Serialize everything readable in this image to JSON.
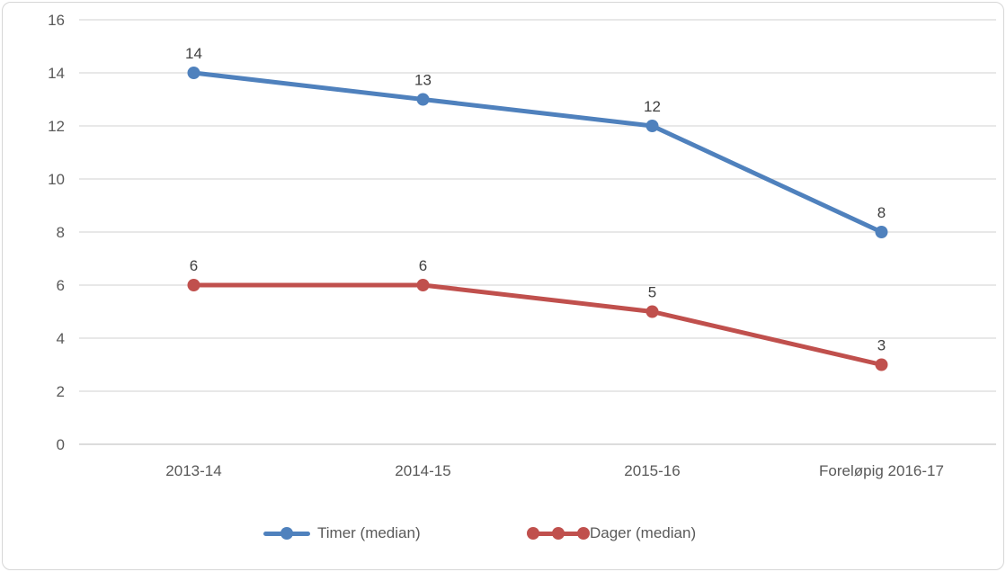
{
  "colors": {
    "blue_series": "#4F81BD",
    "red_series": "#C0504D",
    "gridline": "#D9D9D9",
    "axis_line": "#C6C6C6",
    "tick_text": "#595959",
    "data_label_text": "#404040",
    "frame_border": "#D6D6D6",
    "background": "#FFFFFF"
  },
  "legend": {
    "position": "bottom",
    "items": [
      {
        "label": "Timer (median)",
        "color": "#4F81BD",
        "marker": "line-one-dot"
      },
      {
        "label": "Dager (median)",
        "color": "#C0504D",
        "marker": "line-three-dots"
      }
    ]
  },
  "chart_data": {
    "type": "line",
    "title": "",
    "xlabel": "",
    "ylabel": "",
    "categories": [
      "2013-14",
      "2014-15",
      "2015-16",
      "Foreløpig 2016-17"
    ],
    "series": [
      {
        "name": "Timer (median)",
        "color": "#4F81BD",
        "values": [
          14,
          13,
          12,
          8
        ]
      },
      {
        "name": "Dager (median)",
        "color": "#C0504D",
        "values": [
          6,
          6,
          5,
          3
        ]
      }
    ],
    "ylim": [
      0,
      16
    ],
    "yticks": [
      0,
      2,
      4,
      6,
      8,
      10,
      12,
      14,
      16
    ],
    "grid": true,
    "data_labels": true,
    "legend_position": "bottom"
  }
}
